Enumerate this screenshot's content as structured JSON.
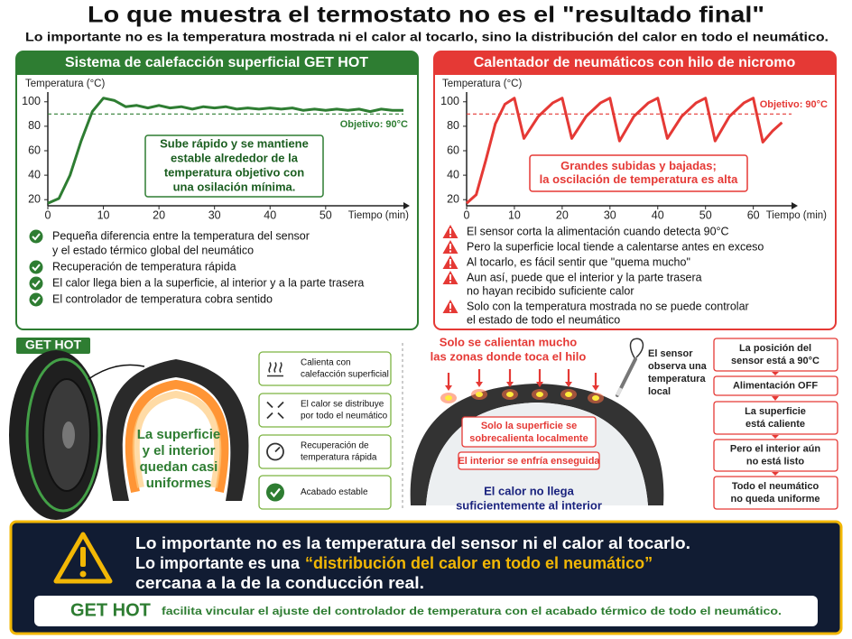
{
  "header": {
    "title": "Lo que muestra el termostato no es el \"resultado final\"",
    "subtitle": "Lo importante no es la temperatura mostrada ni el calor al tocarlo, sino la distribución del calor en todo el neumático."
  },
  "chart_data": [
    {
      "type": "line",
      "title": "Sistema de calefacción superficial GET HOT",
      "ylabel": "Temperatura (°C)",
      "xlabel": "Tiempo (min)",
      "color": "#2e7d32",
      "x": [
        0,
        2,
        4,
        6,
        8,
        10,
        12,
        14,
        16,
        18,
        20,
        22,
        24,
        26,
        28,
        30,
        32,
        34,
        36,
        38,
        40,
        42,
        44,
        46,
        48,
        50,
        52,
        54,
        56,
        58,
        60,
        62,
        64
      ],
      "values": [
        17,
        21,
        40,
        68,
        92,
        103,
        101,
        96,
        97,
        95,
        97,
        95,
        96,
        94,
        96,
        95,
        96,
        94,
        95,
        94,
        95,
        94,
        95,
        93,
        94,
        93,
        94,
        93,
        94,
        92,
        94,
        93,
        93
      ],
      "xlim": [
        0,
        64
      ],
      "ylim": [
        15,
        105
      ],
      "xticks": [
        0,
        10,
        20,
        30,
        40,
        50
      ],
      "yticks": [
        20,
        40,
        60,
        80,
        100
      ],
      "target": 90,
      "target_label": "Objetivo: 90°C",
      "annotation": [
        "Sube rápido y se mantiene",
        "estable alrededor de la",
        "temperatura objetivo con",
        "una osilación mínima."
      ]
    },
    {
      "type": "line",
      "title": "Calentador de neumáticos con hilo de nicromo",
      "ylabel": "Temperatura (°C)",
      "xlabel": "Tiempo (min)",
      "color": "#e53935",
      "x": [
        0,
        2,
        4,
        6,
        8,
        10,
        12,
        15,
        18,
        20,
        22,
        25,
        28,
        30,
        32,
        35,
        38,
        40,
        42,
        45,
        48,
        50,
        52,
        55,
        58,
        60,
        62,
        64,
        66
      ],
      "values": [
        17,
        24,
        52,
        82,
        98,
        103,
        70,
        88,
        99,
        103,
        70,
        88,
        99,
        103,
        68,
        88,
        99,
        103,
        70,
        88,
        99,
        103,
        68,
        88,
        99,
        103,
        67,
        76,
        83
      ],
      "xlim": [
        0,
        68
      ],
      "ylim": [
        15,
        105
      ],
      "xticks": [
        0,
        10,
        20,
        30,
        40,
        50,
        60
      ],
      "yticks": [
        20,
        40,
        60,
        80,
        100
      ],
      "target": 90,
      "target_label": "Objetivo: 90°C",
      "annotation": [
        "Grandes subidas y bajadas;",
        "la oscilación de temperatura es alta"
      ]
    }
  ],
  "left_panel": {
    "bullets": [
      [
        "Pequeña diferencia entre la temperatura del sensor",
        "y el estado térmico global del neumático"
      ],
      [
        "Recuperación de temperatura rápida"
      ],
      [
        "El calor llega bien a la superficie, al interior y a la parte trasera"
      ],
      [
        "El controlador de temperatura cobra sentido"
      ]
    ]
  },
  "right_panel": {
    "bullets": [
      [
        "El sensor corta la alimentación cuando detecta 90°C"
      ],
      [
        "Pero la superficie local tiende a calentarse antes en exceso"
      ],
      [
        "Al tocarlo, es fácil sentir que \"quema mucho\""
      ],
      [
        "Aun así, puede que el interior y la parte trasera",
        "no hayan recibido suficiente calor"
      ],
      [
        "Solo con la temperatura mostrada no se puede controlar",
        "el estado de todo el neumático"
      ]
    ]
  },
  "get_hot_section": {
    "badge": "GET HOT",
    "center_text": [
      "La superficie",
      "y el interior",
      "quedan casi",
      "uniformes"
    ],
    "features": [
      [
        "Calienta con",
        "calefacción superficial"
      ],
      [
        "El calor se distribuye",
        "por todo el neumático"
      ],
      [
        "Recuperación de",
        "temperatura rápida"
      ],
      [
        "Acabado estable"
      ]
    ]
  },
  "nichrome_section": {
    "heat_note": [
      "Solo se calientan mucho",
      "las zonas donde toca el hilo"
    ],
    "sensor_note": [
      "El sensor",
      "observa una",
      "temperatura",
      "local"
    ],
    "surface_note": [
      "Solo la superficie se",
      "sobrecalienta localmente"
    ],
    "interior_note": "El interior se enfría enseguida",
    "bottom_note": [
      "El calor no llega",
      "suficientemente al interior"
    ],
    "flow": [
      [
        "La posición del",
        "sensor está a 90°C"
      ],
      [
        "Alimentación OFF"
      ],
      [
        "La superficie",
        "está caliente"
      ],
      [
        "Pero el interior aún",
        "no está listo"
      ],
      [
        "Todo el neumático",
        "no queda uniforme"
      ]
    ]
  },
  "banner": {
    "line1": "Lo importante no es la temperatura del sensor ni el calor al tocarlo.",
    "line2_start": "Lo importante es una",
    "line2_highlight": "“distribución del calor en todo el neumático”",
    "line3": "cercana a la de la conducción real.",
    "brand": "GET HOT",
    "brand_text": "facilita vincular el ajuste del controlador de temperatura con el acabado térmico de todo el neumático."
  }
}
